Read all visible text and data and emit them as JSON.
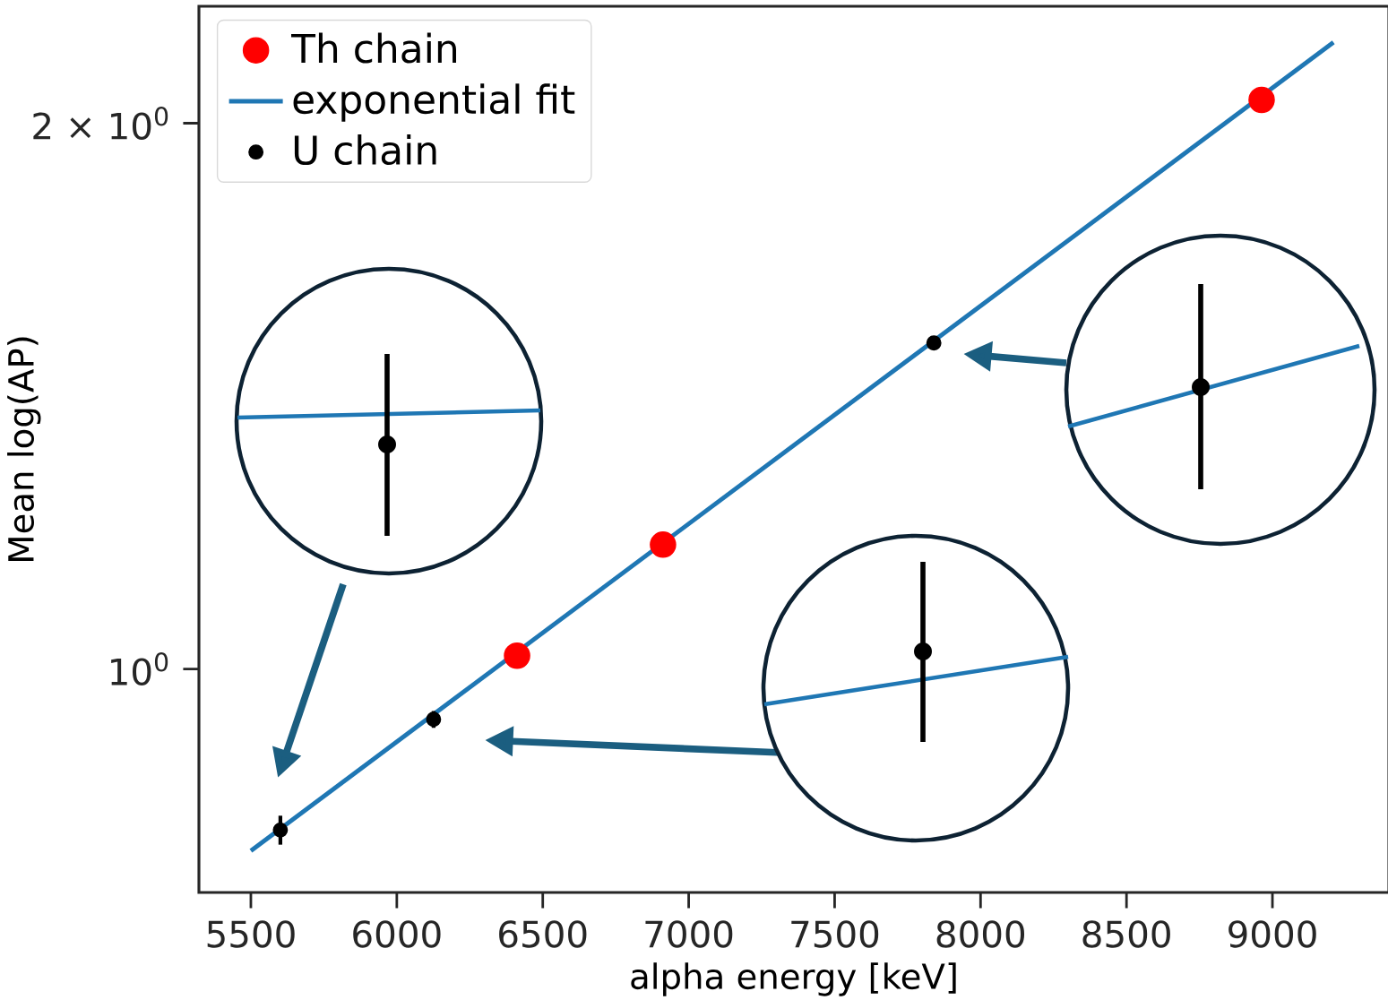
{
  "chart_data": {
    "type": "scatter",
    "xlabel": "alpha energy [keV]",
    "ylabel": "Mean log(AP)",
    "log": "y",
    "xlim": [
      5322,
      9399
    ],
    "ylim": [
      0.753,
      2.32
    ],
    "xticks": [
      5500,
      6000,
      6500,
      7000,
      7500,
      8000,
      8500,
      9000
    ],
    "yticks": [
      {
        "value": 1,
        "label": "10$^{0}$"
      },
      {
        "value": 2,
        "label": "2 × 10$^{0}$"
      }
    ],
    "legend": "top left",
    "series": [
      {
        "name": "Th chain",
        "marker": "circle",
        "color": "#ff0000",
        "x": [
          6412,
          6912,
          8963
        ],
        "values": [
          1.017,
          1.171,
          2.06
        ]
      },
      {
        "name": "exponential fit",
        "type": "line",
        "marker": "none",
        "color": "#1f77b4",
        "x": [
          5500,
          9209
        ],
        "values": [
          0.794,
          2.216
        ]
      },
      {
        "name": "U chain",
        "marker": "circle",
        "color": "#000000",
        "x": [
          5601,
          6126,
          7840
        ],
        "values": [
          0.815,
          0.938,
          1.513
        ],
        "errors": [
          0.015,
          0.01,
          0.008
        ]
      }
    ]
  }
}
